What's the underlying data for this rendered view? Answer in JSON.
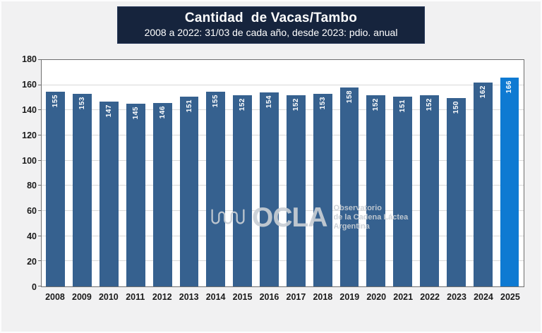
{
  "header": {
    "title": "Cantidad  de Vacas/Tambo",
    "subtitle": "2008 a 2022: 31/03 de cada año, desde 2023: pdio. anual",
    "bg_color": "#16243d",
    "text_color": "#ffffff"
  },
  "watermark": {
    "icon": "milk-drip-squiggle-icon",
    "brand": "OCLA",
    "tagline_lines": [
      "Observatorio",
      "de la Cadena Láctea",
      "Argentina"
    ],
    "color": "#c9cfd5"
  },
  "chart_data": {
    "type": "bar",
    "title": "Cantidad de Vacas/Tambo",
    "subtitle": "2008 a 2022: 31/03 de cada año, desde 2023: pdio. anual",
    "categories": [
      "2008",
      "2009",
      "2010",
      "2011",
      "2012",
      "2013",
      "2014",
      "2015",
      "2016",
      "2017",
      "2018",
      "2019",
      "2020",
      "2021",
      "2022",
      "2023",
      "2024",
      "2025"
    ],
    "values": [
      155,
      153,
      147,
      145,
      146,
      151,
      155,
      152,
      154,
      152,
      153,
      158,
      152,
      151,
      152,
      150,
      162,
      166
    ],
    "xlabel": "",
    "ylabel": "",
    "ylim": [
      0,
      180
    ],
    "yticks": [
      0,
      20,
      40,
      60,
      80,
      100,
      120,
      140,
      160,
      180
    ],
    "grid": true,
    "legend": "none",
    "value_labels": "inside-end, rotated 90° counterclockwise, white bold",
    "bar_color": "#36618f",
    "highlight_color": "#0e7ad2",
    "highlight_category": "2025"
  },
  "colors": {
    "page_bg": "#f1f1f2",
    "plot_bg": "#ffffff",
    "gridline": "#d9d9d9",
    "plot_border": "#6e6e6e",
    "axis_text": "#1a1a1a",
    "value_label_text": "#ffffff"
  }
}
